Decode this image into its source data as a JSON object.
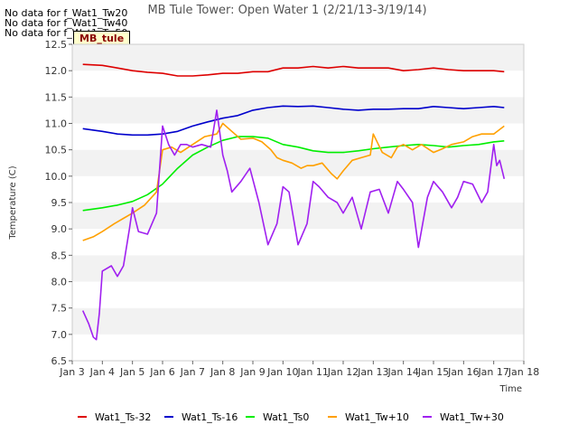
{
  "chart_data": {
    "type": "line",
    "title": "MB Tule Tower: Open Water 1 (2/21/13-3/19/14)",
    "xlabel": "Time",
    "ylabel": "Temperature (C)",
    "x_unit": "day of January",
    "xlim": [
      3,
      18
    ],
    "ylim": [
      6.5,
      12.5
    ],
    "x_ticks": [
      3,
      4,
      5,
      6,
      7,
      8,
      9,
      10,
      11,
      12,
      13,
      14,
      15,
      16,
      17,
      18
    ],
    "x_tick_labels": [
      "Jan 3",
      "Jan 4",
      "Jan 5",
      "Jan 6",
      "Jan 7",
      "Jan 8",
      "Jan 9",
      "Jan 10",
      "Jan 11",
      "Jan 12",
      "Jan 13",
      "Jan 14",
      "Jan 15",
      "Jan 16",
      "Jan 17",
      "Jan 18"
    ],
    "y_ticks": [
      6.5,
      7.0,
      7.5,
      8.0,
      8.5,
      9.0,
      9.5,
      10.0,
      10.5,
      11.0,
      11.5,
      12.0,
      12.5
    ],
    "y_tick_labels": [
      "6.5",
      "7.0",
      "7.5",
      "8.0",
      "8.5",
      "9.0",
      "9.5",
      "10.0",
      "10.5",
      "11.0",
      "11.5",
      "12.0",
      "12.5"
    ],
    "grid": "alternating horizontal bands",
    "legend_position": "bottom",
    "no_data_notes": [
      "No data for f_Wat1_Tw20",
      "No data for f_Wat1_Tw40",
      "No data for f_Wat1_Tw50"
    ],
    "site_label": "MB_tule",
    "series": [
      {
        "name": "Wat1_Ts-32",
        "color": "#dd0000",
        "x": [
          3.35,
          4,
          4.5,
          5,
          5.5,
          6,
          6.5,
          7,
          7.5,
          8,
          8.5,
          9,
          9.5,
          10,
          10.5,
          11,
          11.5,
          12,
          12.5,
          13,
          13.5,
          14,
          14.5,
          15,
          15.5,
          16,
          16.5,
          17,
          17.35
        ],
        "y": [
          12.12,
          12.1,
          12.05,
          12.0,
          11.97,
          11.95,
          11.9,
          11.9,
          11.92,
          11.95,
          11.95,
          11.98,
          11.98,
          12.05,
          12.05,
          12.08,
          12.05,
          12.08,
          12.05,
          12.05,
          12.05,
          12.0,
          12.02,
          12.05,
          12.02,
          12.0,
          12.0,
          12.0,
          11.98
        ]
      },
      {
        "name": "Wat1_Ts-16",
        "color": "#0000cc",
        "x": [
          3.35,
          4,
          4.5,
          5,
          5.5,
          6,
          6.5,
          7,
          7.5,
          8,
          8.5,
          9,
          9.5,
          10,
          10.5,
          11,
          11.5,
          12,
          12.5,
          13,
          13.5,
          14,
          14.5,
          15,
          15.5,
          16,
          16.5,
          17,
          17.35
        ],
        "y": [
          10.9,
          10.85,
          10.8,
          10.78,
          10.78,
          10.8,
          10.85,
          10.95,
          11.03,
          11.1,
          11.15,
          11.25,
          11.3,
          11.33,
          11.32,
          11.33,
          11.3,
          11.27,
          11.25,
          11.27,
          11.27,
          11.28,
          11.28,
          11.32,
          11.3,
          11.28,
          11.3,
          11.32,
          11.3
        ]
      },
      {
        "name": "Wat1_Ts0",
        "color": "#00ee00",
        "x": [
          3.35,
          4,
          4.5,
          5,
          5.5,
          6,
          6.5,
          7,
          7.5,
          8,
          8.5,
          9,
          9.5,
          10,
          10.5,
          11,
          11.5,
          12,
          12.5,
          13,
          13.5,
          14,
          14.5,
          15,
          15.5,
          16,
          16.5,
          17,
          17.35
        ],
        "y": [
          9.35,
          9.4,
          9.45,
          9.52,
          9.65,
          9.85,
          10.15,
          10.4,
          10.55,
          10.68,
          10.75,
          10.75,
          10.72,
          10.6,
          10.55,
          10.48,
          10.45,
          10.45,
          10.48,
          10.52,
          10.55,
          10.58,
          10.6,
          10.58,
          10.55,
          10.58,
          10.6,
          10.65,
          10.67
        ]
      },
      {
        "name": "Wat1_Tw+10",
        "color": "#ffa000",
        "x": [
          3.35,
          3.7,
          4.0,
          4.4,
          4.7,
          5.0,
          5.4,
          5.8,
          6.0,
          6.3,
          6.6,
          7.0,
          7.4,
          7.8,
          8.0,
          8.3,
          8.6,
          9.0,
          9.3,
          9.6,
          9.8,
          10.0,
          10.3,
          10.6,
          10.8,
          11.0,
          11.3,
          11.6,
          11.8,
          12.0,
          12.3,
          12.6,
          12.9,
          13.0,
          13.3,
          13.6,
          13.8,
          14.0,
          14.3,
          14.6,
          15.0,
          15.3,
          15.6,
          16.0,
          16.3,
          16.6,
          17.0,
          17.35
        ],
        "y": [
          8.78,
          8.85,
          8.95,
          9.1,
          9.2,
          9.3,
          9.45,
          9.7,
          10.5,
          10.55,
          10.45,
          10.6,
          10.75,
          10.8,
          11.0,
          10.85,
          10.7,
          10.72,
          10.65,
          10.5,
          10.35,
          10.3,
          10.25,
          10.15,
          10.2,
          10.2,
          10.25,
          10.05,
          9.95,
          10.1,
          10.3,
          10.35,
          10.4,
          10.8,
          10.45,
          10.35,
          10.55,
          10.6,
          10.5,
          10.6,
          10.45,
          10.52,
          10.6,
          10.65,
          10.75,
          10.8,
          10.8,
          10.95
        ]
      },
      {
        "name": "Wat1_Tw+30",
        "color": "#a020f0",
        "x": [
          3.35,
          3.55,
          3.7,
          3.8,
          3.9,
          4.0,
          4.3,
          4.5,
          4.7,
          4.9,
          5.0,
          5.2,
          5.5,
          5.8,
          6.0,
          6.2,
          6.4,
          6.6,
          6.8,
          7.0,
          7.3,
          7.6,
          7.8,
          8.0,
          8.15,
          8.3,
          8.6,
          8.9,
          9.2,
          9.5,
          9.8,
          10.0,
          10.2,
          10.5,
          10.8,
          11.0,
          11.2,
          11.5,
          11.8,
          12.0,
          12.3,
          12.6,
          12.9,
          13.2,
          13.5,
          13.8,
          14.0,
          14.3,
          14.5,
          14.8,
          15.0,
          15.3,
          15.6,
          15.8,
          16.0,
          16.3,
          16.6,
          16.8,
          17.0,
          17.1,
          17.2,
          17.35
        ],
        "y": [
          7.45,
          7.2,
          6.95,
          6.9,
          7.4,
          8.2,
          8.3,
          8.1,
          8.3,
          9.0,
          9.4,
          8.95,
          8.9,
          9.3,
          10.95,
          10.6,
          10.4,
          10.6,
          10.6,
          10.55,
          10.6,
          10.55,
          11.25,
          10.4,
          10.1,
          9.7,
          9.9,
          10.15,
          9.5,
          8.7,
          9.1,
          9.8,
          9.7,
          8.7,
          9.1,
          9.9,
          9.8,
          9.6,
          9.5,
          9.3,
          9.6,
          9.0,
          9.7,
          9.75,
          9.3,
          9.9,
          9.75,
          9.5,
          8.65,
          9.6,
          9.9,
          9.7,
          9.4,
          9.6,
          9.9,
          9.85,
          9.5,
          9.7,
          10.6,
          10.2,
          10.3,
          9.95
        ]
      }
    ]
  }
}
